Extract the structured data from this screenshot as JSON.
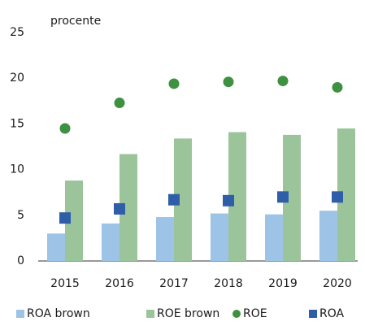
{
  "chart_data": {
    "type": "bar",
    "y_label": "procente",
    "categories": [
      "2015",
      "2016",
      "2017",
      "2018",
      "2019",
      "2020"
    ],
    "series": [
      {
        "name": "ROA brown",
        "color": "#9dc3e6",
        "kind": "bar",
        "values": [
          3.0,
          4.1,
          4.8,
          5.2,
          5.1,
          5.5
        ]
      },
      {
        "name": "ROE brown",
        "color": "#9bc49b",
        "kind": "bar",
        "values": [
          8.8,
          11.7,
          13.4,
          14.1,
          13.8,
          14.5
        ]
      },
      {
        "name": "ROE",
        "color": "#3f9142",
        "kind": "circle",
        "values": [
          14.5,
          17.3,
          19.4,
          19.6,
          19.7,
          19.0
        ]
      },
      {
        "name": "ROA",
        "color": "#2e5ea8",
        "kind": "square",
        "values": [
          4.7,
          5.7,
          6.7,
          6.6,
          7.0,
          7.0
        ]
      }
    ],
    "ylim": [
      0,
      25
    ],
    "yticks": [
      0,
      5,
      10,
      15,
      20,
      25
    ],
    "grid": false
  }
}
